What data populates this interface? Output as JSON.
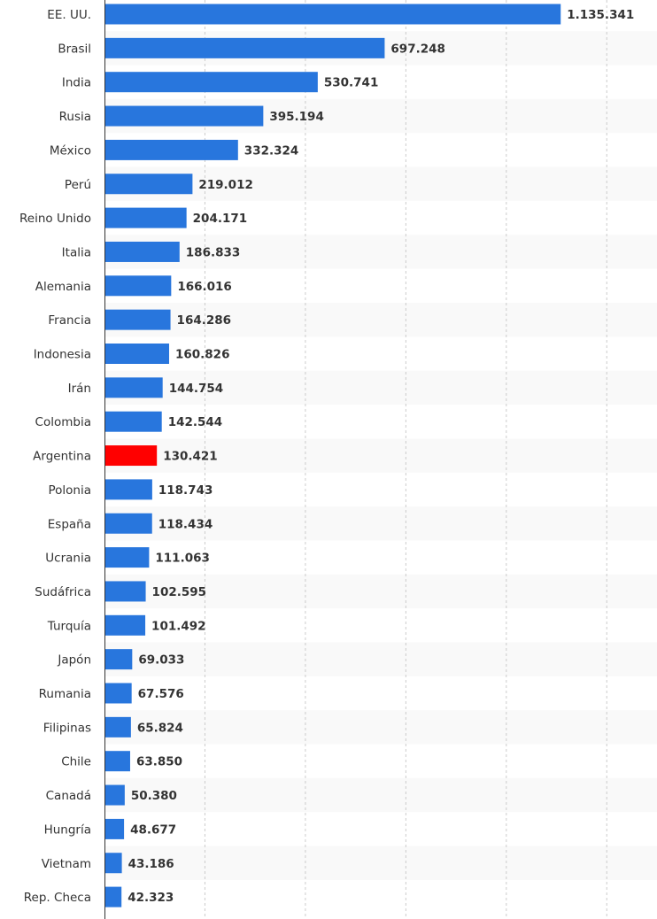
{
  "chart_data": {
    "type": "bar",
    "orientation": "horizontal",
    "categories": [
      "EE. UU.",
      "Brasil",
      "India",
      "Rusia",
      "México",
      "Perú",
      "Reino Unido",
      "Italia",
      "Alemania",
      "Francia",
      "Indonesia",
      "Irán",
      "Colombia",
      "Argentina",
      "Polonia",
      "España",
      "Ucrania",
      "Sudáfrica",
      "Turquía",
      "Japón",
      "Rumania",
      "Filipinas",
      "Chile",
      "Canadá",
      "Hungría",
      "Vietnam",
      "Rep. Checa"
    ],
    "values": [
      1135341,
      697248,
      530741,
      395194,
      332324,
      219012,
      204171,
      186833,
      166016,
      164286,
      160826,
      144754,
      142544,
      130421,
      118743,
      118434,
      111063,
      102595,
      101492,
      69033,
      67576,
      65824,
      63850,
      50380,
      48677,
      43186,
      42323
    ],
    "value_labels": [
      "1.135.341",
      "697.248",
      "530.741",
      "395.194",
      "332.324",
      "219.012",
      "204.171",
      "186.833",
      "166.016",
      "164.286",
      "160.826",
      "144.754",
      "142.544",
      "130.421",
      "118.743",
      "118.434",
      "111.063",
      "102.595",
      "101.492",
      "69.033",
      "67.576",
      "65.824",
      "63.850",
      "50.380",
      "48.677",
      "43.186",
      "42.323"
    ],
    "highlight": "Argentina",
    "xlim": [
      0,
      1375000
    ],
    "grid": "vertical dashed",
    "legend": "none",
    "colors": {
      "bar": "#2876dd",
      "highlight": "#ff0000",
      "grid": "#cccccc",
      "row_band": "#f9f9f9",
      "text": "#333333",
      "axis": "#333333"
    }
  }
}
